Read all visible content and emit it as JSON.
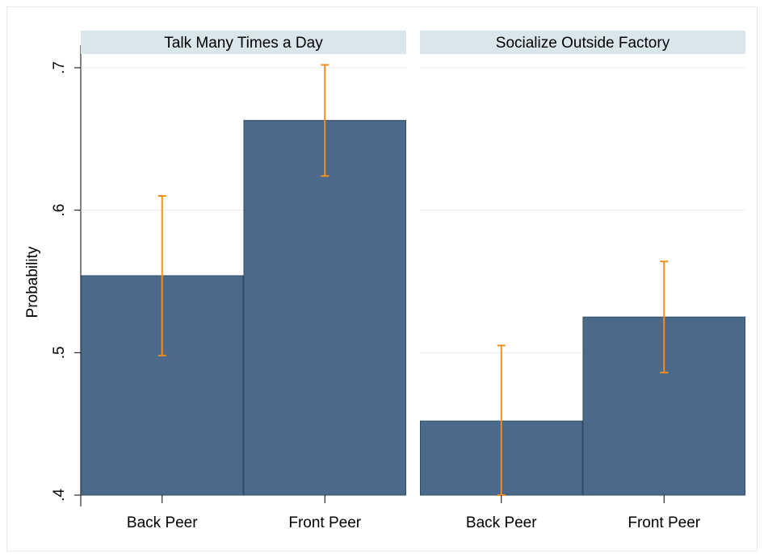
{
  "chart_data": {
    "type": "bar",
    "ylabel": "Probability",
    "ylim": [
      0.4,
      0.7
    ],
    "yticks": [
      0.4,
      0.5,
      0.6,
      0.7
    ],
    "ytick_labels": [
      ".4",
      ".5",
      ".6",
      ".7"
    ],
    "categories": [
      "Back Peer",
      "Front Peer"
    ],
    "grid": true,
    "panels": [
      {
        "title": "Talk Many Times a Day",
        "values": [
          0.554,
          0.663
        ],
        "ci_low": [
          0.498,
          0.624
        ],
        "ci_high": [
          0.61,
          0.702
        ]
      },
      {
        "title": "Socialize Outside Factory",
        "values": [
          0.452,
          0.525
        ],
        "ci_low": [
          0.4,
          0.486
        ],
        "ci_high": [
          0.505,
          0.564
        ]
      }
    ],
    "colors": {
      "bar_fill": "#4a698b",
      "bar_edge": "#2f4a66",
      "error_bar": "#f28e1c",
      "strip_bg": "#d9e6eb",
      "grid": "#e6ecef"
    }
  }
}
